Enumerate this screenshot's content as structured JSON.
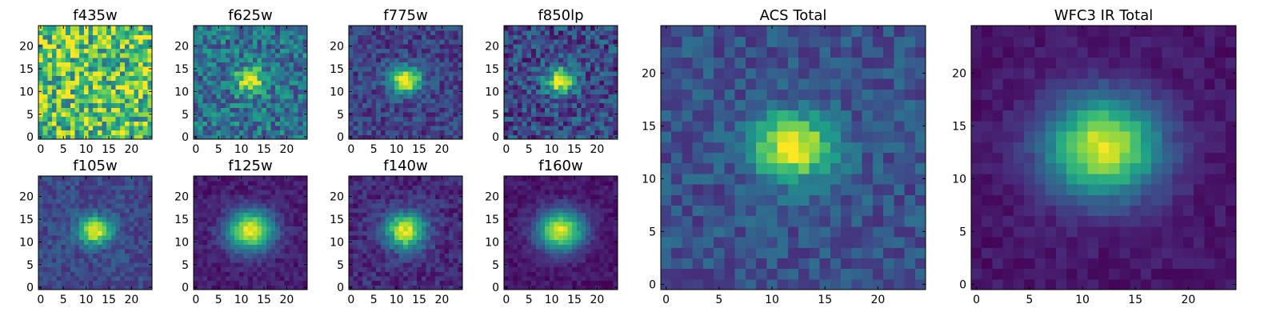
{
  "chart_data": [
    {
      "type": "heatmap",
      "title": "f435w",
      "xlim": [
        0,
        24
      ],
      "ylim": [
        0,
        24
      ],
      "xticks": [
        0,
        5,
        10,
        15,
        20
      ],
      "yticks": [
        0,
        5,
        10,
        15,
        20
      ],
      "center": [
        12,
        12.5
      ],
      "sigma": [
        3,
        3
      ],
      "peak": 0,
      "noise": 0.35,
      "base": 0.72,
      "seed": 11
    },
    {
      "type": "heatmap",
      "title": "f625w",
      "xlim": [
        0,
        24
      ],
      "ylim": [
        0,
        24
      ],
      "xticks": [
        0,
        5,
        10,
        15,
        20
      ],
      "yticks": [
        0,
        5,
        10,
        15,
        20
      ],
      "center": [
        12,
        12.5
      ],
      "sigma": [
        2.2,
        2.0
      ],
      "peak": 0.62,
      "noise": 0.22,
      "base": 0.38,
      "seed": 23
    },
    {
      "type": "heatmap",
      "title": "f775w",
      "xlim": [
        0,
        24
      ],
      "ylim": [
        0,
        24
      ],
      "xticks": [
        0,
        5,
        10,
        15,
        20
      ],
      "yticks": [
        0,
        5,
        10,
        15,
        20
      ],
      "center": [
        12,
        12.5
      ],
      "sigma": [
        2.4,
        2.0
      ],
      "peak": 0.85,
      "noise": 0.14,
      "base": 0.2,
      "seed": 37
    },
    {
      "type": "heatmap",
      "title": "f850lp",
      "xlim": [
        0,
        24
      ],
      "ylim": [
        0,
        24
      ],
      "xticks": [
        0,
        5,
        10,
        15,
        20
      ],
      "yticks": [
        0,
        5,
        10,
        15,
        20
      ],
      "center": [
        12,
        12.5
      ],
      "sigma": [
        2.3,
        2.0
      ],
      "peak": 0.78,
      "noise": 0.2,
      "base": 0.22,
      "seed": 41
    },
    {
      "type": "heatmap",
      "title": "f105w",
      "xlim": [
        0,
        24
      ],
      "ylim": [
        0,
        24
      ],
      "xticks": [
        0,
        5,
        10,
        15,
        20
      ],
      "yticks": [
        0,
        5,
        10,
        15,
        20
      ],
      "center": [
        12,
        12.5
      ],
      "sigma": [
        2.6,
        2.1
      ],
      "peak": 0.78,
      "noise": 0.1,
      "base": 0.22,
      "seed": 53
    },
    {
      "type": "heatmap",
      "title": "f125w",
      "xlim": [
        0,
        24
      ],
      "ylim": [
        0,
        24
      ],
      "xticks": [
        0,
        5,
        10,
        15,
        20
      ],
      "yticks": [
        0,
        5,
        10,
        15,
        20
      ],
      "center": [
        12,
        12.5
      ],
      "sigma": [
        3.6,
        3.1
      ],
      "peak": 0.9,
      "noise": 0.07,
      "base": 0.08,
      "seed": 61
    },
    {
      "type": "heatmap",
      "title": "f140w",
      "xlim": [
        0,
        24
      ],
      "ylim": [
        0,
        24
      ],
      "xticks": [
        0,
        5,
        10,
        15,
        20
      ],
      "yticks": [
        0,
        5,
        10,
        15,
        20
      ],
      "center": [
        12,
        12.5
      ],
      "sigma": [
        3.1,
        2.8
      ],
      "peak": 0.85,
      "noise": 0.1,
      "base": 0.12,
      "seed": 71
    },
    {
      "type": "heatmap",
      "title": "f160w",
      "xlim": [
        0,
        24
      ],
      "ylim": [
        0,
        24
      ],
      "xticks": [
        0,
        5,
        10,
        15,
        20
      ],
      "yticks": [
        0,
        5,
        10,
        15,
        20
      ],
      "center": [
        12,
        12.5
      ],
      "sigma": [
        3.6,
        3.1
      ],
      "peak": 0.9,
      "noise": 0.06,
      "base": 0.06,
      "seed": 83
    },
    {
      "type": "heatmap",
      "title": "ACS Total",
      "xlim": [
        0,
        24
      ],
      "ylim": [
        0,
        24
      ],
      "xticks": [
        0,
        5,
        10,
        15,
        20
      ],
      "yticks": [
        0,
        5,
        10,
        15,
        20
      ],
      "center": [
        12,
        13
      ],
      "sigma": [
        2.6,
        2.2
      ],
      "peak": 0.78,
      "noise": 0.12,
      "base": 0.25,
      "seed": 97
    },
    {
      "type": "heatmap",
      "title": "WFC3 IR Total",
      "xlim": [
        0,
        24
      ],
      "ylim": [
        0,
        24
      ],
      "xticks": [
        0,
        5,
        10,
        15,
        20
      ],
      "yticks": [
        0,
        5,
        10,
        15,
        20
      ],
      "center": [
        12,
        13
      ],
      "sigma": [
        3.8,
        3.3
      ],
      "peak": 0.9,
      "noise": 0.05,
      "base": 0.06,
      "seed": 101
    }
  ],
  "colors": {
    "colormap": "viridis",
    "viridis_stops": [
      "#440154",
      "#482878",
      "#3e4a89",
      "#31688e",
      "#26828e",
      "#1f9e89",
      "#35b779",
      "#6ece58",
      "#b5de2b",
      "#fde725"
    ]
  }
}
